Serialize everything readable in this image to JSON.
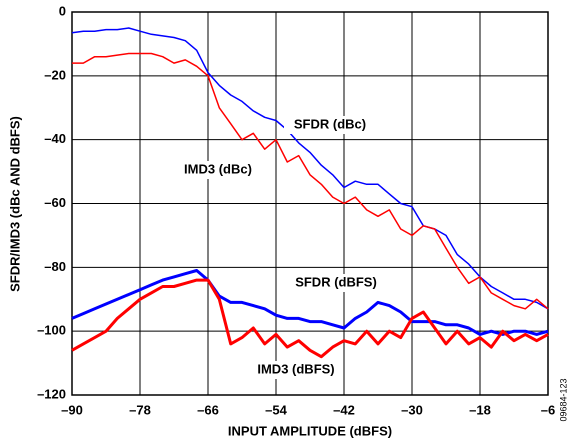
{
  "chart_data": {
    "type": "line",
    "x_label": "INPUT AMPLITUDE (dBFS)",
    "y_label": "SFDR/IMD3 (dBc AND dBFS)",
    "annotations": [
      "SFDR (dBc)",
      "IMD3 (dBc)",
      "SFDR (dBFS)",
      "IMD3 (dBFS)"
    ],
    "figure_code": "09684-123",
    "x": [
      -90,
      -88,
      -86,
      -84,
      -82,
      -80,
      -78,
      -76,
      -74,
      -72,
      -70,
      -68,
      -66,
      -64,
      -62,
      -60,
      -58,
      -56,
      -54,
      -52,
      -50,
      -48,
      -46,
      -44,
      -42,
      -40,
      -38,
      -36,
      -34,
      -32,
      -30,
      -28,
      -26,
      -24,
      -22,
      -20,
      -18,
      -16,
      -14,
      -12,
      -10,
      -8,
      -6
    ],
    "series": [
      {
        "name": "SFDR (dBc)",
        "color": "#0000ff",
        "width": 1.5,
        "values": [
          -6.5,
          -6,
          -6,
          -5.5,
          -5.5,
          -5,
          -6,
          -7,
          -7.5,
          -8,
          -9,
          -12,
          -19,
          -23,
          -26,
          -28,
          -31,
          -33,
          -34,
          -37,
          -41,
          -44,
          -48,
          -51,
          -55,
          -53,
          -54,
          -54,
          -57,
          -60,
          -61,
          -67,
          -68,
          -70,
          -76,
          -79,
          -83,
          -86,
          -88,
          -90,
          -90,
          -91,
          -93
        ]
      },
      {
        "name": "IMD3 (dBc)",
        "color": "#ff0000",
        "width": 1.5,
        "values": [
          -16,
          -16,
          -14,
          -14,
          -13.5,
          -13,
          -13,
          -13,
          -14,
          -16,
          -15,
          -17,
          -20,
          -30,
          -35,
          -40,
          -38,
          -43,
          -40,
          -47,
          -45,
          -51,
          -54,
          -58,
          -60,
          -58,
          -62,
          -64,
          -62,
          -68,
          -70,
          -67,
          -68,
          -74,
          -80,
          -85,
          -83,
          -88,
          -90,
          -92,
          -93,
          -90,
          -93
        ]
      },
      {
        "name": "SFDR (dBFS)",
        "color": "#0000ff",
        "width": 3,
        "values": [
          -96,
          -94.5,
          -93,
          -91.5,
          -90,
          -88.5,
          -87,
          -85.5,
          -84,
          -83,
          -82,
          -81,
          -84,
          -89,
          -91,
          -91,
          -92,
          -93,
          -95,
          -96,
          -96,
          -97,
          -97,
          -98,
          -99,
          -96,
          -94,
          -91,
          -92,
          -94,
          -97,
          -97,
          -97,
          -98,
          -98,
          -99,
          -101,
          -100,
          -101,
          -100,
          -100,
          -101,
          -100
        ]
      },
      {
        "name": "IMD3 (dBFS)",
        "color": "#ff0000",
        "width": 3,
        "values": [
          -106,
          -104,
          -102,
          -100,
          -96,
          -93,
          -90,
          -88,
          -86,
          -86,
          -85,
          -84,
          -84,
          -90,
          -104,
          -102,
          -99,
          -104,
          -101,
          -105,
          -103,
          -106,
          -108,
          -105,
          -103,
          -104,
          -100,
          -104,
          -100,
          -102,
          -96,
          -94,
          -99,
          -104,
          -100,
          -104,
          -102,
          -105,
          -100,
          -103,
          -101,
          -103,
          -101
        ]
      }
    ],
    "xlim": [
      -90,
      -6
    ],
    "xticks": [
      {
        "value": -90,
        "label": "–90"
      },
      {
        "value": -78,
        "label": "–78"
      },
      {
        "value": -66,
        "label": "–66"
      },
      {
        "value": -54,
        "label": "–54"
      },
      {
        "value": -42,
        "label": "–42"
      },
      {
        "value": -30,
        "label": "–30"
      },
      {
        "value": -18,
        "label": "–18"
      },
      {
        "value": -6,
        "label": "–6"
      }
    ],
    "ylim": [
      -120,
      0
    ],
    "yticks": [
      0,
      {
        "value": -20,
        "label": "–20"
      },
      {
        "value": -40,
        "label": "–40"
      },
      {
        "value": -60,
        "label": "–60"
      },
      {
        "value": -80,
        "label": "–80"
      },
      {
        "value": -100,
        "label": "–100"
      },
      {
        "value": -120,
        "label": "–120"
      }
    ],
    "grid": true
  }
}
